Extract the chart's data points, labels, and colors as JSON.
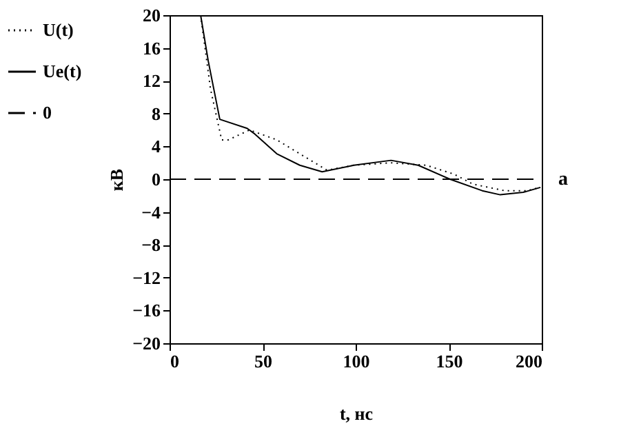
{
  "chart_data": {
    "type": "line",
    "xlabel": "t, нс",
    "ylabel": "кВ",
    "xlim": [
      0,
      200
    ],
    "ylim": [
      -20,
      20
    ],
    "xticks": [
      0,
      50,
      100,
      150,
      200
    ],
    "yticks": [
      -20,
      -16,
      -12,
      -8,
      -4,
      0,
      4,
      8,
      12,
      16,
      20
    ],
    "grid": false,
    "legend": "left",
    "annotations": [
      "a"
    ],
    "series": [
      {
        "name": "U(t)",
        "color": "#000000",
        "line_style": "dotted",
        "x": [
          16.7,
          22,
          28,
          31.6,
          43,
          57.6,
          70,
          84.6,
          99,
          119,
          138,
          153,
          163,
          180,
          192,
          199.3
        ],
        "values": [
          20,
          11,
          4.8,
          4.8,
          6,
          4.8,
          3.1,
          1.1,
          1.7,
          2.0,
          1.7,
          0.6,
          -0.6,
          -1.4,
          -1.4,
          -1.0
        ]
      },
      {
        "name": "Ue(t)",
        "color": "#000000",
        "line_style": "solid",
        "x": [
          16.7,
          20.8,
          27,
          41.7,
          45.3,
          57.6,
          70,
          82,
          99,
          119,
          133.6,
          150.7,
          168,
          177.7,
          190,
          199.3
        ],
        "values": [
          20,
          14.4,
          7.3,
          6.2,
          5.6,
          3.1,
          1.7,
          0.9,
          1.7,
          2.3,
          1.7,
          0,
          -1.4,
          -1.9,
          -1.6,
          -1.0
        ]
      },
      {
        "name": "0",
        "color": "#000000",
        "line_style": "dashed",
        "x": [
          0,
          200
        ],
        "values": [
          0,
          0
        ]
      }
    ]
  }
}
